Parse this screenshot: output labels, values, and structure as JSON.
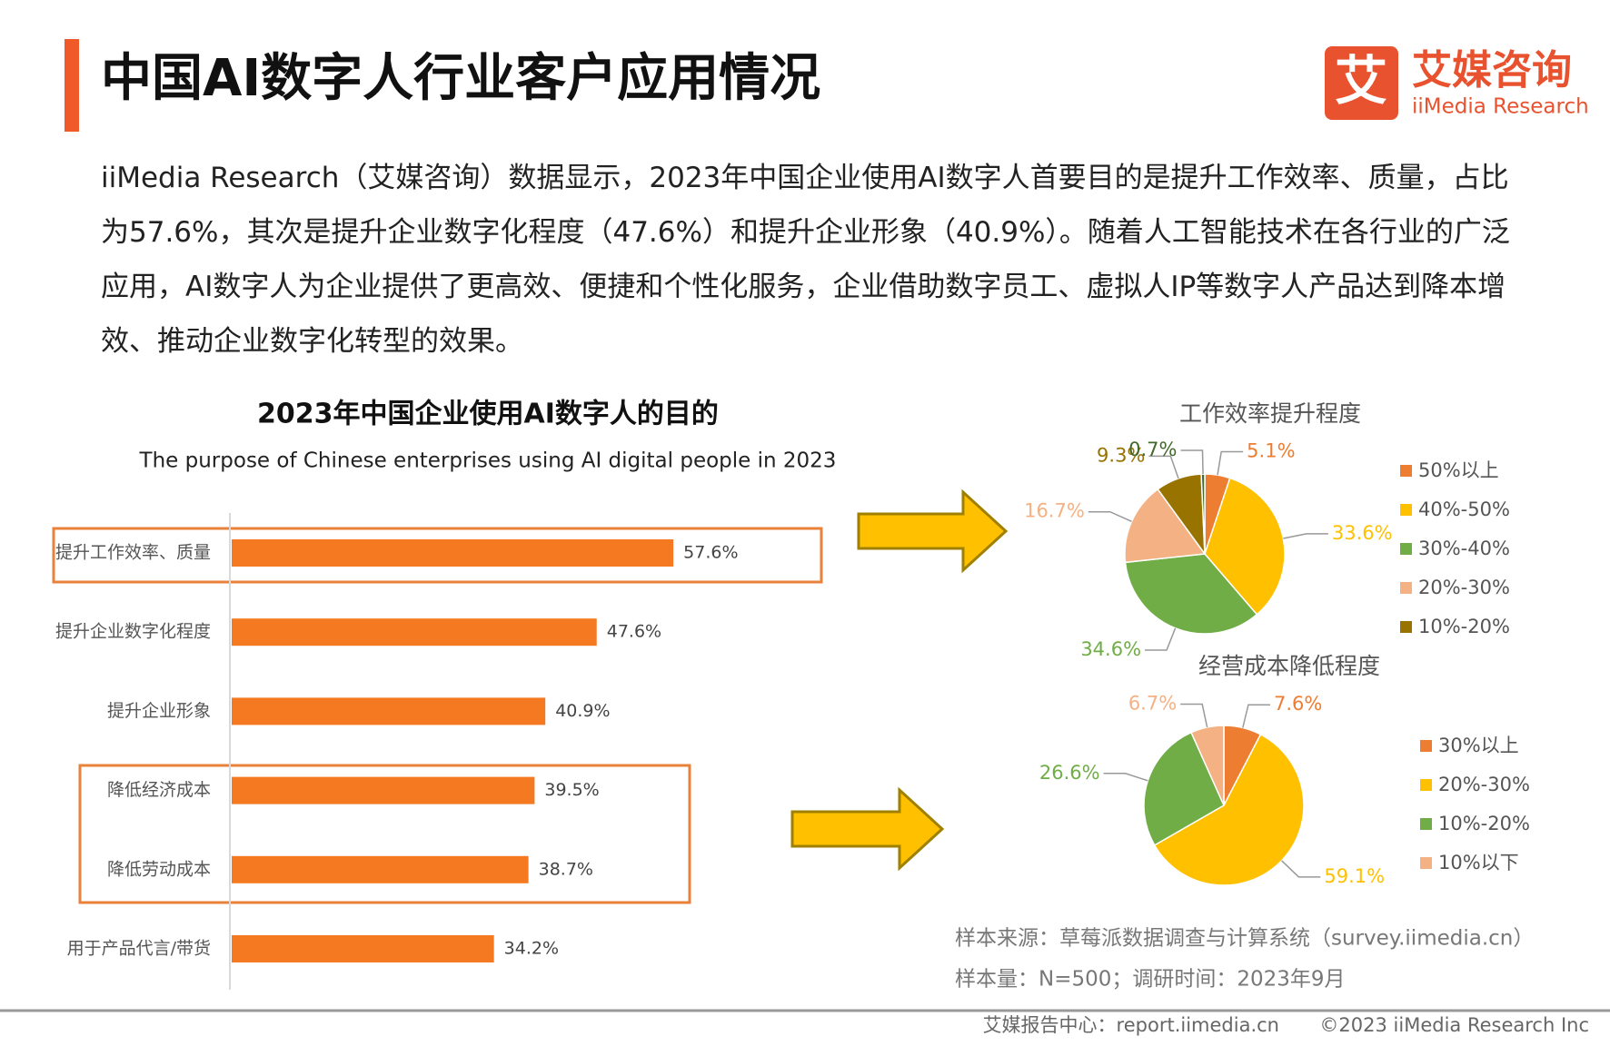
{
  "header": {
    "title": "中国AI数字人行业客户应用情况",
    "logo_icon": "艾",
    "logo_cn": "艾媒咨询",
    "logo_en": "iiMedia Research"
  },
  "body": {
    "paragraph": "iiMedia Research（艾媒咨询）数据显示，2023年中国企业使用AI数字人首要目的是提升工作效率、质量，占比为57.6%，其次是提升企业数字化程度（47.6%）和提升企业形象（40.9%）。随着人工智能技术在各行业的广泛应用，AI数字人为企业提供了更高效、便捷和个性化服务，企业借助数字员工、虚拟人IP等数字人产品达到降本增效、推动企业数字化转型的效果。"
  },
  "chart_data": [
    {
      "type": "bar",
      "title": "2023年中国企业使用AI数字人的目的",
      "subtitle": "The purpose of Chinese enterprises using AI digital people in 2023",
      "categories": [
        "提升工作效率、质量",
        "提升企业数字化程度",
        "提升企业形象",
        "降低经济成本",
        "降低劳动成本",
        "用于产品代言/带货"
      ],
      "values": [
        57.6,
        47.6,
        40.9,
        39.5,
        38.7,
        34.2
      ],
      "value_labels": [
        "57.6%",
        "47.6%",
        "40.9%",
        "39.5%",
        "38.7%",
        "34.2%"
      ],
      "color": "#f47920"
    },
    {
      "type": "pie",
      "title": "工作效率提升程度",
      "categories": [
        "50%以上",
        "40%-50%",
        "30%-40%",
        "20%-30%",
        "10%-20%",
        null
      ],
      "values": [
        5.1,
        33.6,
        34.6,
        16.7,
        9.3,
        0.7
      ],
      "value_labels": [
        "5.1%",
        "33.6%",
        "34.6%",
        "16.7%",
        "9.3%",
        "0.7%"
      ],
      "colors": [
        "#ed7d31",
        "#ffc000",
        "#70ad47",
        "#f4b183",
        "#997300",
        "#43682b"
      ]
    },
    {
      "type": "pie",
      "title": "经营成本降低程度",
      "categories": [
        "30%以上",
        "20%-30%",
        "10%-20%",
        "10%以下"
      ],
      "values": [
        7.6,
        59.1,
        26.6,
        6.7
      ],
      "value_labels": [
        "7.6%",
        "59.1%",
        "26.6%",
        "6.7%"
      ],
      "colors": [
        "#ed7d31",
        "#ffc000",
        "#70ad47",
        "#f4b183"
      ]
    }
  ],
  "source": {
    "line1": "样本来源：草莓派数据调查与计算系统（survey.iimedia.cn）",
    "line2": "样本量：N=500；调研时间：2023年9月"
  },
  "footer": {
    "center": "艾媒报告中心：report.iimedia.cn",
    "copyright": "©2023 iiMedia Research Inc"
  }
}
